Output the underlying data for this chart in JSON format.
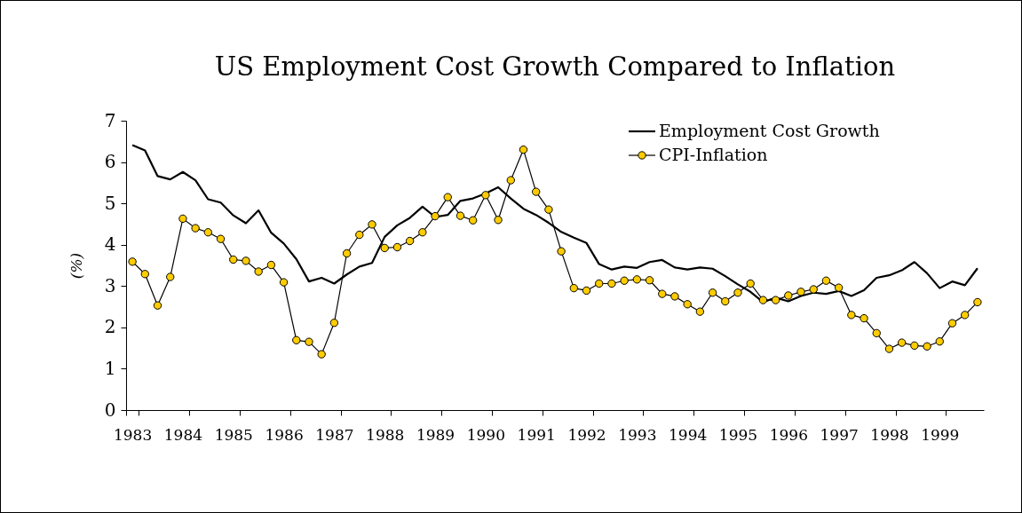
{
  "chart_data": {
    "type": "line",
    "title": "US Employment Cost Growth Compared to Inflation",
    "ylabel": "(%)",
    "categories": [
      "1983",
      null,
      null,
      null,
      "1984",
      null,
      null,
      null,
      "1985",
      null,
      null,
      null,
      "1986",
      null,
      null,
      null,
      "1987",
      null,
      null,
      null,
      "1988",
      null,
      null,
      null,
      "1989",
      null,
      null,
      null,
      "1990",
      null,
      null,
      null,
      "1991",
      null,
      null,
      null,
      "1992",
      null,
      null,
      null,
      "1993",
      null,
      null,
      null,
      "1994",
      null,
      null,
      null,
      "1995",
      null,
      null,
      null,
      "1996",
      null,
      null,
      null,
      "1997",
      null,
      null,
      null,
      "1998",
      null,
      null,
      null,
      "1999",
      null,
      null,
      null
    ],
    "ylim": [
      0,
      7
    ],
    "yticks": [
      0,
      1,
      2,
      3,
      4,
      5,
      6,
      7
    ],
    "grid": false,
    "legend": "top right",
    "series": [
      {
        "name": "Employment Cost Growth",
        "color": "#000000",
        "marker": "none",
        "values": [
          6.41,
          6.28,
          5.66,
          5.58,
          5.76,
          5.56,
          5.1,
          5.02,
          4.71,
          4.52,
          4.83,
          4.29,
          4.03,
          3.65,
          3.11,
          3.2,
          3.06,
          3.28,
          3.47,
          3.56,
          4.19,
          4.47,
          4.65,
          4.92,
          4.67,
          4.72,
          5.06,
          5.12,
          5.24,
          5.39,
          5.12,
          4.87,
          4.72,
          4.53,
          4.31,
          4.17,
          4.04,
          3.53,
          3.4,
          3.47,
          3.44,
          3.58,
          3.63,
          3.45,
          3.4,
          3.45,
          3.42,
          3.24,
          3.04,
          2.86,
          2.61,
          2.72,
          2.63,
          2.76,
          2.84,
          2.81,
          2.88,
          2.76,
          2.9,
          3.2,
          3.26,
          3.38,
          3.58,
          3.31,
          2.95,
          3.11,
          3.02,
          3.43
        ]
      },
      {
        "name": "CPI-Inflation",
        "color": "#ffcc00",
        "marker": "circle",
        "values": [
          3.59,
          3.29,
          2.53,
          3.22,
          4.63,
          4.4,
          4.3,
          4.14,
          3.64,
          3.61,
          3.35,
          3.51,
          3.09,
          1.69,
          1.65,
          1.35,
          2.11,
          3.79,
          4.24,
          4.49,
          3.92,
          3.94,
          4.09,
          4.3,
          4.69,
          5.15,
          4.7,
          4.59,
          5.2,
          4.6,
          5.56,
          6.3,
          5.28,
          4.85,
          3.84,
          2.95,
          2.89,
          3.06,
          3.06,
          3.13,
          3.16,
          3.14,
          2.81,
          2.75,
          2.56,
          2.38,
          2.84,
          2.63,
          2.84,
          3.06,
          2.66,
          2.66,
          2.77,
          2.86,
          2.92,
          3.13,
          2.96,
          2.3,
          2.22,
          1.86,
          1.48,
          1.63,
          1.56,
          1.54,
          1.66,
          2.1,
          2.3,
          2.61
        ]
      }
    ]
  }
}
